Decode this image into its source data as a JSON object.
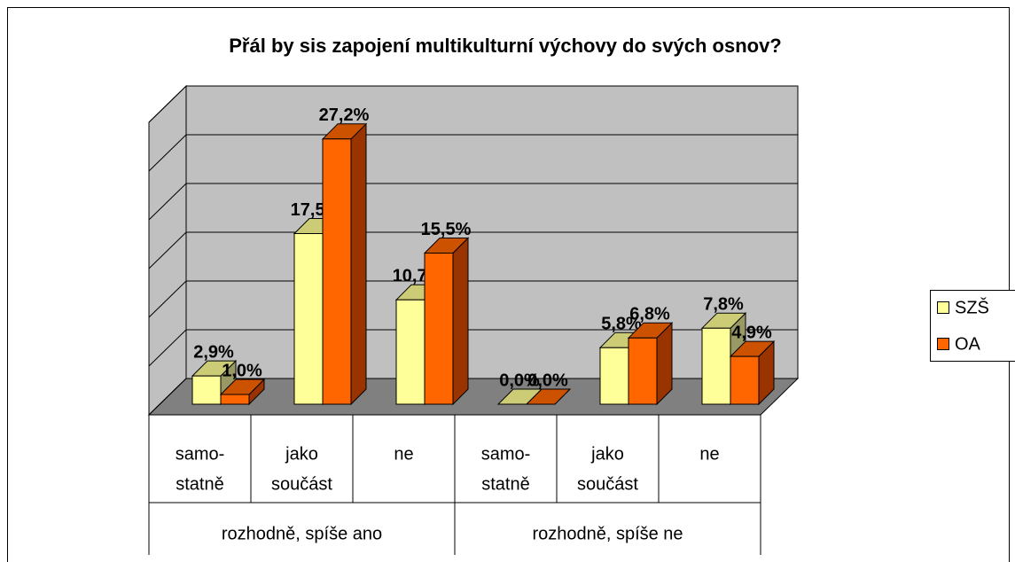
{
  "chart_data": {
    "type": "bar3d",
    "title": "Přál by sis zapojení multikulturní výchovy do svých osnov?",
    "categories": [
      [
        "samo-",
        "statně"
      ],
      [
        "jako",
        "součást"
      ],
      [
        "ne"
      ],
      [
        "samo-",
        "statně"
      ],
      [
        "jako",
        "součást"
      ],
      [
        "ne"
      ]
    ],
    "groups": [
      {
        "label": "rozhodně, spíše ano",
        "span": 3
      },
      {
        "label": "rozhodně, spíše ne",
        "span": 3
      }
    ],
    "series": [
      {
        "name": "SZŠ",
        "color": "#ffff99",
        "values": [
          2.9,
          17.5,
          10.7,
          0,
          5.8,
          7.8
        ],
        "value_labels": [
          "2,9%",
          "17,5%",
          "10,7%",
          "0,0%",
          "5,8%",
          "7,8%"
        ]
      },
      {
        "name": "OA",
        "color": "#ff6600",
        "values": [
          1.0,
          27.2,
          15.5,
          0,
          6.8,
          4.9
        ],
        "value_labels": [
          "1,0%",
          "27,2%",
          "15,5%",
          "0,0%",
          "6,8%",
          "4,9%"
        ]
      }
    ],
    "ylim": [
      0,
      30
    ],
    "yticks": [
      0,
      5,
      10,
      15,
      20,
      25,
      30
    ],
    "grid": true,
    "legend": "right"
  }
}
